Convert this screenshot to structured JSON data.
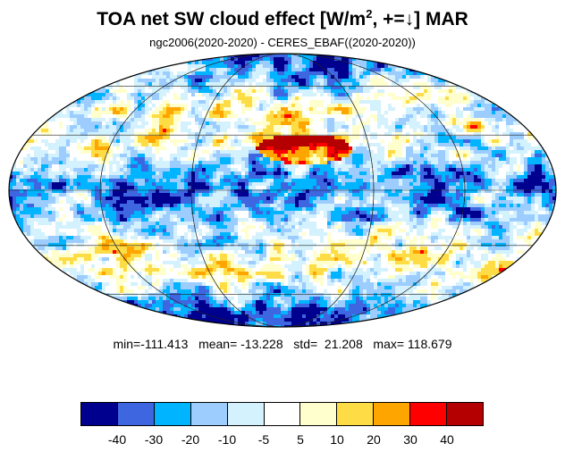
{
  "header": {
    "title_main": "TOA net SW cloud effect [W/m",
    "title_sup": "2",
    "title_tail": ", +=↓]  MAR",
    "subtitle": "ngc2006(2020-2020) - CERES_EBAF((2020-2020))"
  },
  "map": {
    "projection": "mollweide",
    "outline_color": "#000000",
    "graticule_color": "#222222"
  },
  "stats": {
    "text": "min=-111.413   mean= -13.228   std=  21.208   max= 118.679"
  },
  "colorbar": {
    "colors": [
      "#00008f",
      "#3e66e0",
      "#00b4ff",
      "#9ccdfe",
      "#d3f2fd",
      "#ffffff",
      "#feffcc",
      "#fedc46",
      "#ffa500",
      "#ff0000",
      "#b40000"
    ],
    "labels": [
      "-40",
      "-30",
      "-20",
      "-10",
      "-5",
      "5",
      "10",
      "20",
      "30",
      "40"
    ]
  }
}
